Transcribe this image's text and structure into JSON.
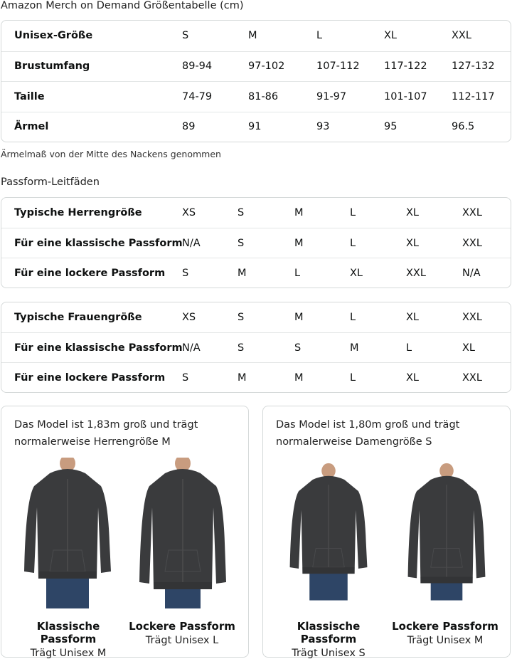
{
  "size_chart": {
    "title": "Amazon Merch on Demand Größentabelle (cm)",
    "rows": [
      {
        "label": "Unisex-Größe",
        "values": [
          "S",
          "M",
          "L",
          "XL",
          "XXL"
        ]
      },
      {
        "label": "Brustumfang",
        "values": [
          "89-94",
          "97-102",
          "107-112",
          "117-122",
          "127-132"
        ]
      },
      {
        "label": "Taille",
        "values": [
          "74-79",
          "81-86",
          "91-97",
          "101-107",
          "112-117"
        ]
      },
      {
        "label": "Ärmel",
        "values": [
          "89",
          "91",
          "93",
          "95",
          "96.5"
        ]
      }
    ],
    "note": "Ärmelmaß von der Mitte des Nackens genommen"
  },
  "fit_guides": {
    "title": "Passform-Leitfäden",
    "men": [
      {
        "label": "Typische Herrengröße",
        "values": [
          "XS",
          "S",
          "M",
          "L",
          "XL",
          "XXL"
        ]
      },
      {
        "label": "Für eine klassische Passform",
        "values": [
          "N/A",
          "S",
          "M",
          "L",
          "XL",
          "XXL"
        ]
      },
      {
        "label": "Für eine lockere Passform",
        "values": [
          "S",
          "M",
          "L",
          "XL",
          "XXL",
          "N/A"
        ]
      }
    ],
    "women": [
      {
        "label": "Typische Frauengröße",
        "values": [
          "XS",
          "S",
          "M",
          "L",
          "XL",
          "XXL"
        ]
      },
      {
        "label": "Für eine klassische Passform",
        "values": [
          "N/A",
          "S",
          "S",
          "M",
          "L",
          "XL"
        ]
      },
      {
        "label": "Für eine lockere Passform",
        "values": [
          "S",
          "M",
          "M",
          "L",
          "XL",
          "XXL"
        ]
      }
    ]
  },
  "models": [
    {
      "desc_line1": "Das Model ist 1,83m groß und trägt",
      "desc_line2": "normalerweise Herrengröße M",
      "fits": [
        {
          "title": "Klassische Passform",
          "size": "Trägt Unisex M"
        },
        {
          "title": "Lockere Passform",
          "size": "Trägt Unisex L"
        }
      ]
    },
    {
      "desc_line1": "Das Model ist 1,80m groß und trägt",
      "desc_line2": "normalerweise Damengröße S",
      "fits": [
        {
          "title": "Klassische Passform",
          "size": "Trägt Unisex S"
        },
        {
          "title": "Lockere Passform",
          "size": "Trägt Unisex M"
        }
      ]
    }
  ],
  "colors": {
    "hoodie": "#3a3b3d",
    "jeans": "#2e4566",
    "border": "#d5d9d9"
  }
}
